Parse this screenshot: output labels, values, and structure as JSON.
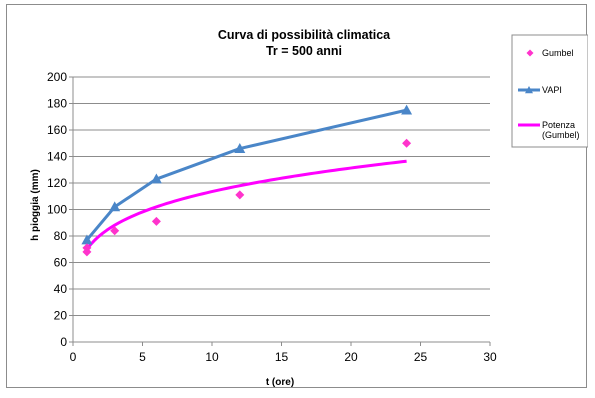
{
  "chart_data": {
    "type": "line",
    "title_lines": [
      "Curva di possibilità  climatica",
      "Tr = 500 anni"
    ],
    "xlabel": "t (ore)",
    "ylabel": "h pioggia (mm)",
    "xlim": [
      0,
      30
    ],
    "ylim": [
      0,
      200
    ],
    "x_ticks": [
      0,
      5,
      10,
      15,
      20,
      25,
      30
    ],
    "y_ticks": [
      0,
      20,
      40,
      60,
      80,
      100,
      120,
      140,
      160,
      180,
      200
    ],
    "grid": "horizontal",
    "legend_position": "right",
    "series": [
      {
        "name": "Gumbel",
        "style": "markers",
        "marker": "diamond",
        "color": "#ff33cc",
        "points": [
          [
            1,
            68
          ],
          [
            1,
            71
          ],
          [
            3,
            84
          ],
          [
            6,
            91
          ],
          [
            12,
            111
          ],
          [
            24,
            150
          ]
        ]
      },
      {
        "name": "VAPI",
        "style": "line-markers",
        "marker": "triangle",
        "color": "#4a86c8",
        "points": [
          [
            1,
            77
          ],
          [
            3,
            102
          ],
          [
            6,
            123
          ],
          [
            12,
            146
          ],
          [
            24,
            175
          ]
        ]
      },
      {
        "name": "Potenza (Gumbel)",
        "name_lines": [
          "Potenza",
          "(Gumbel)"
        ],
        "style": "trendline",
        "color": "#ff00ff",
        "coef": 70.0,
        "exponent": 0.21,
        "x_range": [
          1,
          24
        ]
      }
    ]
  }
}
